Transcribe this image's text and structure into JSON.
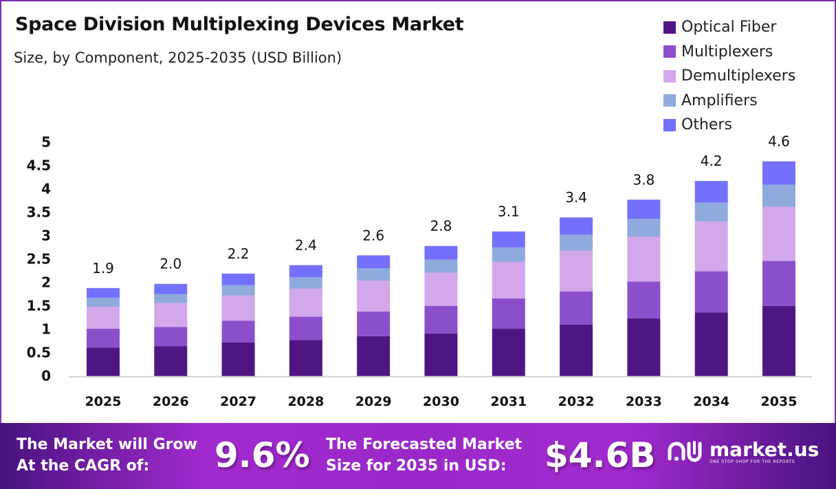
{
  "chart_data": {
    "type": "bar",
    "stacked": true,
    "title": "Space Division Multiplexing Devices Market",
    "subtitle": "Size, by Component, 2025-2035 (USD Billion)",
    "categories": [
      "2025",
      "2026",
      "2027",
      "2028",
      "2029",
      "2030",
      "2031",
      "2032",
      "2033",
      "2034",
      "2035"
    ],
    "series": [
      {
        "name": "Optical Fiber",
        "color": "#4f1683",
        "values": [
          0.61,
          0.64,
          0.72,
          0.77,
          0.85,
          0.91,
          1.01,
          1.1,
          1.23,
          1.36,
          1.5
        ]
      },
      {
        "name": "Multiplexers",
        "color": "#8c4fcc",
        "values": [
          0.4,
          0.41,
          0.46,
          0.5,
          0.53,
          0.59,
          0.65,
          0.71,
          0.79,
          0.88,
          0.96
        ]
      },
      {
        "name": "Demultiplexers",
        "color": "#d3a8eb",
        "values": [
          0.47,
          0.51,
          0.54,
          0.6,
          0.66,
          0.71,
          0.78,
          0.87,
          0.96,
          1.06,
          1.16
        ]
      },
      {
        "name": "Amplifiers",
        "color": "#8faadc",
        "values": [
          0.19,
          0.19,
          0.22,
          0.24,
          0.26,
          0.28,
          0.31,
          0.34,
          0.38,
          0.41,
          0.47
        ]
      },
      {
        "name": "Others",
        "color": "#7570fc",
        "values": [
          0.21,
          0.22,
          0.25,
          0.26,
          0.28,
          0.29,
          0.34,
          0.37,
          0.41,
          0.46,
          0.5
        ]
      }
    ],
    "totals": [
      "1.9",
      "2.0",
      "2.2",
      "2.4",
      "2.6",
      "2.8",
      "3.1",
      "3.4",
      "3.8",
      "4.2",
      "4.6"
    ],
    "yticks": [
      "0",
      "0.5",
      "1",
      "1.5",
      "2",
      "2.5",
      "3",
      "3.5",
      "4",
      "4.5",
      "5"
    ],
    "ylim": [
      0,
      5
    ],
    "grid": false,
    "legend_position": "top-right"
  },
  "footer": {
    "cagr_label_1": "The Market will Grow",
    "cagr_label_2": "At the CAGR of:",
    "cagr_value": "9.6%",
    "size_label_1": "The Forecasted Market",
    "size_label_2": "Size for 2035 in USD:",
    "size_value": "$4.6B",
    "logo_name": "market.us",
    "logo_tagline": "ONE STOP SHOP FOR THE REPORTS"
  }
}
